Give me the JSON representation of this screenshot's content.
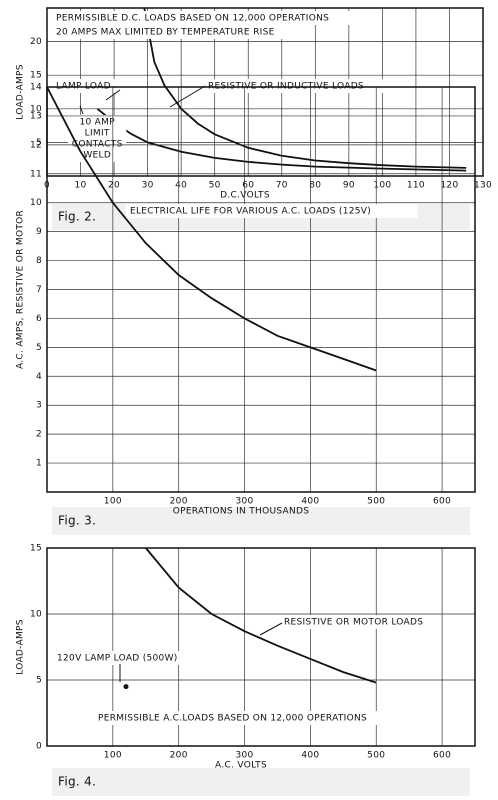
{
  "chart_data": [
    {
      "type": "line",
      "caption": "Fig. 2.",
      "xlabel": "D.C.VOLTS",
      "ylabel": "LOAD-AMPS",
      "xlim": [
        0,
        130
      ],
      "ylim": [
        0,
        25
      ],
      "xticks": [
        0,
        10,
        20,
        30,
        40,
        50,
        60,
        70,
        80,
        90,
        100,
        110,
        120,
        130
      ],
      "yticks": [
        5,
        10,
        15,
        20
      ],
      "grid": true,
      "annotations": [
        "PERMISSIBLE D.C. LOADS BASED ON 12,000 OPERATIONS",
        "20 AMPS MAX LIMITED BY TEMPERATURE RISE",
        "LAMP LOAD",
        "RESISTIVE OR INDUCTIVE LOADS",
        [
          "10 AMP",
          "LIMIT",
          "CONTACTS",
          "WELD"
        ]
      ],
      "series": [
        {
          "color": "#111",
          "x": [
            29,
            32,
            35,
            40,
            45,
            50,
            60,
            70,
            80,
            90,
            100,
            110,
            125
          ],
          "values": [
            25,
            17,
            13.5,
            10,
            7.8,
            6.2,
            4.2,
            3,
            2.3,
            1.9,
            1.6,
            1.4,
            1.2
          ]
        },
        {
          "color": "#111",
          "x": [
            15,
            20,
            25,
            30,
            40,
            50,
            60,
            70,
            80,
            100,
            125
          ],
          "values": [
            10,
            8,
            6.3,
            5,
            3.6,
            2.7,
            2.1,
            1.7,
            1.4,
            1.1,
            0.8
          ]
        }
      ]
    },
    {
      "type": "line",
      "caption": "Fig. 3.",
      "xlabel": "OPERATIONS IN THOUSANDS",
      "ylabel": "A.C. AMPS, RESISTIVE OR MOTOR",
      "xlim": [
        0,
        650
      ],
      "ylim": [
        0,
        14
      ],
      "xticks": [
        100,
        200,
        300,
        400,
        500,
        600
      ],
      "yticks": [
        1,
        2,
        3,
        4,
        5,
        6,
        7,
        8,
        9,
        10,
        11,
        12,
        13,
        14
      ],
      "grid": true,
      "annotations": [
        "ELECTRICAL LIFE FOR VARIOUS A.C. LOADS (125V)"
      ],
      "series": [
        {
          "color": "#111",
          "x": [
            0,
            50,
            100,
            150,
            200,
            250,
            300,
            350,
            400,
            450,
            500
          ],
          "values": [
            14,
            11.8,
            10,
            8.6,
            7.5,
            6.7,
            6,
            5.4,
            5,
            4.6,
            4.2
          ]
        }
      ]
    },
    {
      "type": "line",
      "caption": "Fig. 4.",
      "xlabel": "A.C. VOLTS",
      "ylabel": "LOAD-AMPS",
      "xlim": [
        0,
        650
      ],
      "ylim": [
        0,
        15
      ],
      "xticks": [
        100,
        200,
        300,
        400,
        500,
        600
      ],
      "yticks": [
        0,
        5,
        10,
        15
      ],
      "grid": true,
      "annotations": [
        "RESISTIVE OR MOTOR LOADS",
        "120V LAMP LOAD (500W)",
        "PERMISSIBLE A.C.LOADS BASED ON 12,000 OPERATIONS"
      ],
      "series": [
        {
          "color": "#111",
          "x": [
            150,
            200,
            250,
            300,
            350,
            400,
            450,
            500
          ],
          "values": [
            15,
            12,
            10,
            8.7,
            7.6,
            6.6,
            5.6,
            4.8
          ]
        },
        {
          "color": "#111",
          "marker": true,
          "x": [
            120
          ],
          "values": [
            4.5
          ]
        }
      ]
    }
  ]
}
